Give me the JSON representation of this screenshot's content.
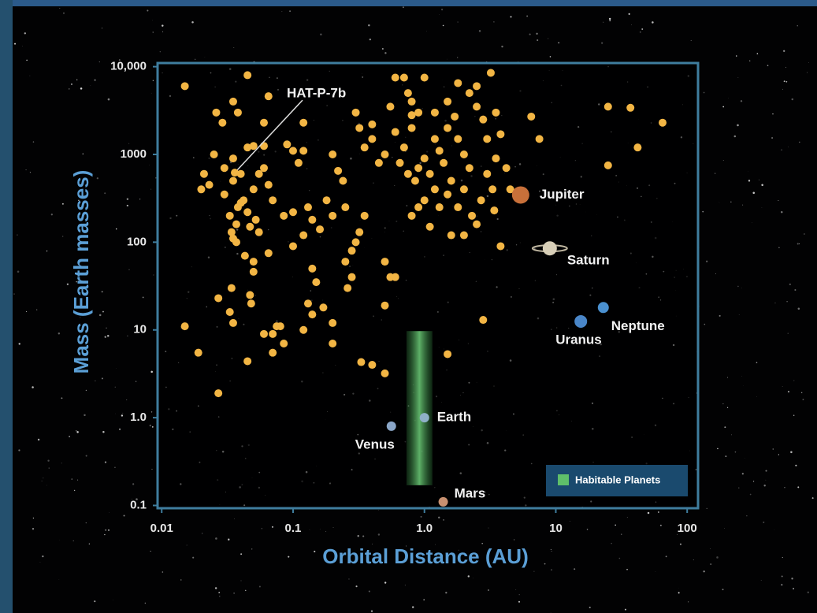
{
  "chart_data": {
    "type": "scatter",
    "x_label": "Orbital Distance (AU)",
    "y_label": "Mass (Earth masses)",
    "log_x": true,
    "log_y": true,
    "xlim": [
      0.0093,
      121
    ],
    "ylim": [
      0.093,
      11000
    ],
    "xticks": [
      0.01,
      0.1,
      {
        "value": 1,
        "label": "1.0"
      },
      10,
      100
    ],
    "yticks": [
      0.1,
      {
        "value": 1,
        "label": "1.0"
      },
      10,
      100,
      1000,
      {
        "value": 10000,
        "label": "10,000"
      }
    ],
    "exoplanets": {
      "color": "#f2b544",
      "x": [
        0.015,
        0.015,
        0.019,
        0.027,
        0.027,
        0.026,
        0.029,
        0.021,
        0.02,
        0.023,
        0.025,
        0.03,
        0.033,
        0.034,
        0.035,
        0.037,
        0.038,
        0.04,
        0.042,
        0.045,
        0.047,
        0.05,
        0.052,
        0.035,
        0.04,
        0.03,
        0.035,
        0.045,
        0.05,
        0.06,
        0.055,
        0.06,
        0.065,
        0.07,
        0.033,
        0.035,
        0.034,
        0.037,
        0.043,
        0.05,
        0.045,
        0.047,
        0.048,
        0.05,
        0.06,
        0.07,
        0.07,
        0.075,
        0.08,
        0.085,
        0.065,
        0.055,
        0.038,
        0.035,
        0.045,
        0.065,
        0.06,
        0.09,
        0.1,
        0.12,
        0.12,
        0.11,
        0.085,
        0.1,
        0.13,
        0.14,
        0.16,
        0.12,
        0.1,
        0.2,
        0.22,
        0.24,
        0.18,
        0.2,
        0.25,
        0.14,
        0.15,
        0.13,
        0.14,
        0.12,
        0.17,
        0.2,
        0.2,
        0.25,
        0.28,
        0.3,
        0.32,
        0.35,
        0.28,
        0.26,
        0.33,
        0.4,
        0.5,
        0.5,
        0.55,
        0.5,
        0.6,
        0.3,
        0.32,
        0.4,
        0.4,
        0.45,
        0.35,
        0.5,
        0.6,
        0.55,
        0.7,
        0.6,
        0.75,
        0.8,
        0.9,
        0.8,
        0.7,
        0.65,
        0.75,
        0.85,
        0.9,
        1.0,
        1.1,
        1.2,
        1.0,
        0.9,
        0.8,
        1.1,
        1.3,
        1.5,
        1.6,
        1.4,
        1.3,
        1.2,
        1.5,
        1.8,
        2.0,
        2.2,
        2.0,
        1.8,
        2.3,
        2.5,
        1.6,
        2.0,
        1.2,
        1.5,
        1.8,
        2.2,
        2.5,
        2.8,
        3.0,
        3.0,
        3.5,
        3.3,
        2.7,
        3.2,
        3.5,
        3.8,
        4.5,
        4.2,
        2.5,
        1.0,
        0.8,
        1.7,
        3.8,
        6.5,
        2.8,
        1.5,
        25,
        37,
        42,
        25,
        65,
        7.5,
        3.4
      ],
      "y": [
        6000,
        11,
        5.5,
        1.9,
        23,
        3000,
        2300,
        600,
        400,
        450,
        1000,
        350,
        200,
        130,
        110,
        160,
        250,
        280,
        300,
        220,
        150,
        400,
        180,
        500,
        600,
        700,
        900,
        1200,
        1250,
        1250,
        600,
        700,
        450,
        300,
        16,
        12,
        30,
        100,
        70,
        60,
        4.4,
        25,
        20,
        46,
        9,
        9,
        5.5,
        11,
        11,
        7,
        75,
        130,
        3000,
        4000,
        8000,
        4600,
        2300,
        1300,
        1100,
        1100,
        2300,
        800,
        200,
        220,
        250,
        180,
        140,
        120,
        90,
        1000,
        650,
        500,
        300,
        200,
        250,
        50,
        35,
        20,
        15,
        10,
        18,
        12,
        7,
        60,
        80,
        100,
        130,
        200,
        40,
        30,
        4.3,
        4,
        3.2,
        19,
        40,
        60,
        40,
        3000,
        2000,
        1500,
        2200,
        800,
        1200,
        1000,
        1800,
        3500,
        7500,
        7500,
        5000,
        4000,
        3000,
        2000,
        1200,
        800,
        600,
        500,
        700,
        900,
        600,
        400,
        300,
        250,
        200,
        150,
        250,
        350,
        500,
        800,
        1100,
        1500,
        2000,
        1500,
        1000,
        700,
        400,
        250,
        200,
        160,
        120,
        120,
        3000,
        4000,
        6500,
        5000,
        3500,
        2500,
        1500,
        600,
        900,
        400,
        300,
        8500,
        3000,
        1700,
        400,
        700,
        6000,
        7500,
        2800,
        2700,
        90,
        2700,
        13,
        5.3,
        3500,
        3400,
        1200,
        750,
        2300,
        1500,
        230
      ]
    },
    "planets": [
      {
        "name": "Venus",
        "x": 0.56,
        "y": 0.8,
        "color": "#8aa6c8"
      },
      {
        "name": "Earth",
        "x": 1.0,
        "y": 1.0,
        "color": "#8fb0c8"
      },
      {
        "name": "Mars",
        "x": 1.39,
        "y": 0.11,
        "color": "#c89070"
      },
      {
        "name": "Jupiter",
        "x": 5.4,
        "y": 345,
        "color": "#c8703a"
      },
      {
        "name": "Saturn",
        "x": 9.0,
        "y": 85,
        "color": "#d8cfb8"
      },
      {
        "name": "Uranus",
        "x": 15.5,
        "y": 12.5,
        "color": "#4a86c8"
      },
      {
        "name": "Neptune",
        "x": 23,
        "y": 18,
        "color": "#4a90d0"
      }
    ],
    "annotation": {
      "text": "HAT-P-7b",
      "x": 0.036,
      "y": 620
    },
    "habitable_zone": {
      "name": "Habitable Planets",
      "color": "#5fbf6a",
      "x": [
        0.73,
        1.15
      ],
      "y": [
        0.17,
        9.7
      ]
    }
  }
}
